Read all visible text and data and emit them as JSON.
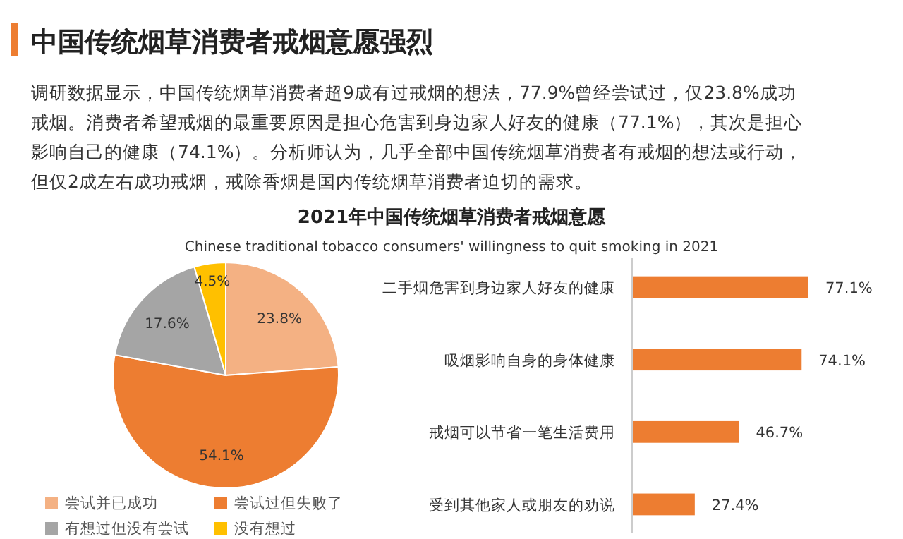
{
  "chart_data": [
    {
      "type": "other",
      "title": "中国传统烟草消费者戒烟意愿强烈",
      "annotations": [
        "调研数据显示，中国传统烟草消费者超9成有过戒烟的想法，77.9%曾经尝试过，仅23.8%成功戒烟。消费者希望戒烟的最重要原因是担心危害到身边家人好友的健康（77.1%），其次是担心影响自己的健康（74.1%）。分析师认为，几乎全部中国传统烟草消费者有戒烟的想法或行动，但仅2成左右成功戒烟，戒除香烟是国内传统烟草消费者迫切的需求。"
      ]
    },
    {
      "type": "pie",
      "title": "2021年中国传统烟草消费者戒烟意愿",
      "subtitle": "Chinese traditional tobacco consumers' willingness to quit smoking in 2021",
      "categories": [
        "尝试并已成功",
        "尝试过但失败了",
        "有想过但没有尝试",
        "没有想过"
      ],
      "values": [
        23.8,
        54.1,
        17.6,
        4.5
      ],
      "colors": [
        "#f4b183",
        "#ed7d31",
        "#a5a5a5",
        "#ffc000"
      ],
      "value_labels": [
        "23.8%",
        "54.1%",
        "17.6%",
        "4.5%"
      ],
      "legend": "bottom"
    },
    {
      "type": "bar",
      "orientation": "horizontal",
      "categories": [
        "二手烟危害到身边家人好友的健康",
        "吸烟影响自身的身体健康",
        "戒烟可以节省一笔生活费用",
        "受到其他家人或朋友的劝说"
      ],
      "values": [
        77.1,
        74.1,
        46.7,
        27.4
      ],
      "color": "#ed7d31",
      "value_labels": [
        "77.1%",
        "74.1%",
        "46.7%",
        "27.4%"
      ]
    }
  ]
}
